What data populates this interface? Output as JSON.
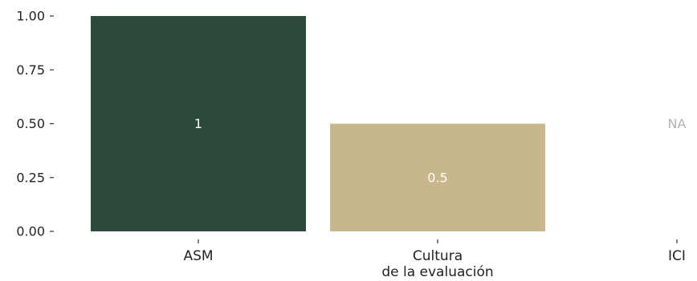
{
  "chart_data": {
    "type": "bar",
    "title": "",
    "xlabel": "",
    "ylabel": "",
    "ylim": [
      0,
      1
    ],
    "yticks": [
      0,
      0.25,
      0.5,
      0.75,
      1
    ],
    "ytick_labels": [
      "0.00",
      "0.25",
      "0.50",
      "0.75",
      "1.00"
    ],
    "grid": false,
    "legend": "none",
    "categories": [
      [
        "ASM"
      ],
      [
        "Cultura",
        "de la evaluación"
      ],
      [
        "ICI"
      ]
    ],
    "values": [
      1,
      0.5,
      null
    ],
    "value_labels": [
      "1",
      "0.5",
      "NA"
    ],
    "colors": [
      "#2b4a3c",
      "#c8b68c",
      null
    ],
    "na_color": "#b3b3b3",
    "label_color": "#ffffff"
  }
}
